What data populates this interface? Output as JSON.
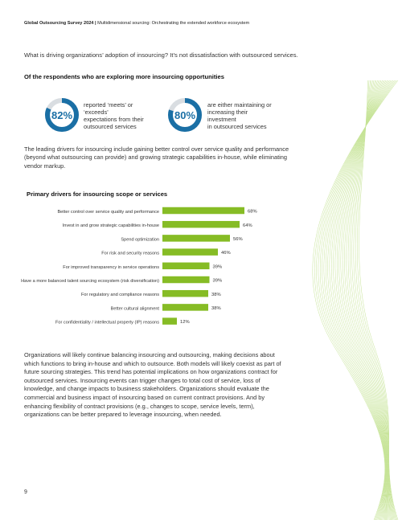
{
  "header": {
    "bold": "Global Outsourcing Survey 2024 |",
    "rest": " Multidimensional sourcing: Orchestrating the extended workforce ecosystem"
  },
  "intro": "What is driving organizations’ adoption of insourcing? It’s not dissatisfaction with outsourced services.",
  "section_title": "Of the respondents who are exploring more insourcing opportunities",
  "stats": [
    {
      "value": "82%",
      "fraction": 0.82,
      "lines": [
        "reported ‘meets’ or ‘exceeds’",
        "expectations from their",
        "outsourced services"
      ]
    },
    {
      "value": "80%",
      "fraction": 0.8,
      "lines": [
        "are either maintaining or",
        "increasing their investment",
        "in outsourced services"
      ]
    }
  ],
  "paragraph1": "The leading drivers for insourcing include gaining better control over service quality and performance (beyond what outsourcing can provide) and growing strategic capabilities in-house, while eliminating vendor markup.",
  "chart_data": {
    "type": "bar",
    "orientation": "horizontal",
    "title": "Primary drivers for insourcing scope or services",
    "categories": [
      "Better control over service quality and performance",
      "Invest in and grow strategic capabilities in-house",
      "Spend optimization",
      "For risk and security reasons",
      "For improved transparency in service operations",
      "Have a more balanced talent sourcing ecosystem (risk diversification)",
      "For regulatory and compliance reasons",
      "Better cultural alignment",
      "For confidentiality / intellectual property (IP) reasons"
    ],
    "values": [
      68,
      64,
      56,
      46,
      39,
      39,
      38,
      38,
      12
    ],
    "value_labels": [
      "68%",
      "64%",
      "56%",
      "46%",
      "39%",
      "39%",
      "38%",
      "38%",
      "12%"
    ],
    "bar_color": "#86bc25",
    "legend": "none",
    "grid": false
  },
  "paragraph2": "Organizations will likely continue balancing insourcing and outsourcing, making decisions about which functions to bring in-house and which to outsource. Both models will likely coexist as part of future sourcing strategies. This trend has potential implications on how organizations contract for outsourced services. Insourcing events can trigger changes to total cost of service, loss of knowledge, and change impacts to business stakeholders. Organizations should evaluate the commercial and business impact of insourcing based on current contract provisions. And by enhancing flexibility of contract provisions (e.g., changes to scope, service levels, term), organizations can be better prepared to leverage insourcing, when needed.",
  "page_number": "9",
  "colors": {
    "accent_blue": "#1a6fa5",
    "donut_track": "#d9dde1",
    "bar_green": "#86bc25"
  }
}
